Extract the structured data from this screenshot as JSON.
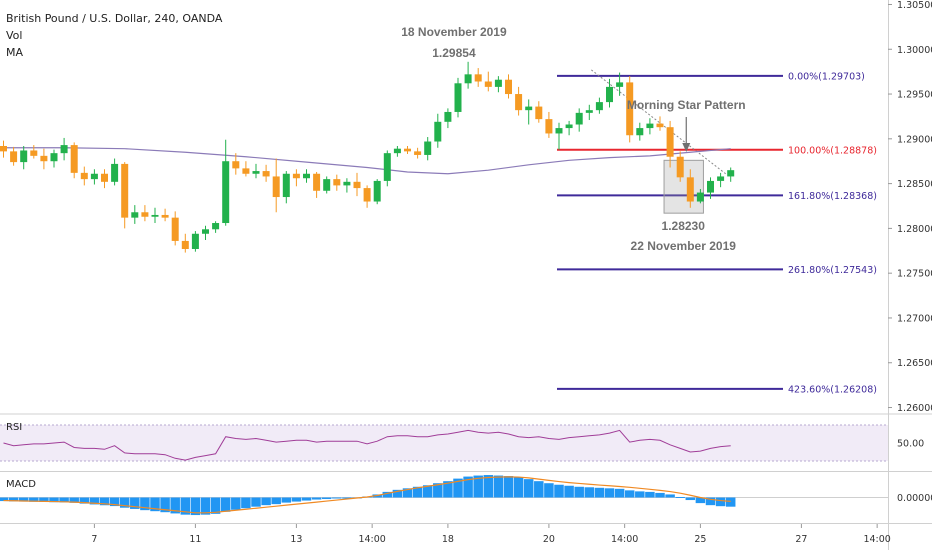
{
  "header": {
    "symbol_line": "British Pound / U.S. Dollar, 240, OANDA",
    "vol_label": "Vol",
    "ma_label": "MA"
  },
  "panes": {
    "rsi_label": "RSI",
    "macd_label": "MACD",
    "rsi_level": "50.00",
    "macd_level": "0.00000"
  },
  "chart_data": {
    "type": "candlestick",
    "price_axis": {
      "ticks": [
        "1.30500",
        "1.30000",
        "1.29500",
        "1.29000",
        "1.28500",
        "1.28000",
        "1.27500",
        "1.27000",
        "1.26500",
        "1.26000"
      ],
      "ylim": [
        1.2595,
        1.3055
      ]
    },
    "x_axis": {
      "ticks": [
        {
          "label": "7",
          "i": 9
        },
        {
          "label": "11",
          "i": 19
        },
        {
          "label": "13",
          "i": 29
        },
        {
          "label": "14:00",
          "i": 36.5
        },
        {
          "label": "18",
          "i": 44
        },
        {
          "label": "20",
          "i": 54
        },
        {
          "label": "14:00",
          "i": 61.5
        },
        {
          "label": "25",
          "i": 69
        },
        {
          "label": "27",
          "i": 79
        },
        {
          "label": "14:00",
          "i": 86.5
        }
      ]
    },
    "candles_ohlc": [
      [
        1.2892,
        1.2898,
        1.2879,
        1.2886
      ],
      [
        1.2886,
        1.2891,
        1.287,
        1.2874
      ],
      [
        1.2874,
        1.2892,
        1.2866,
        1.2887
      ],
      [
        1.2887,
        1.2893,
        1.2878,
        1.2881
      ],
      [
        1.2881,
        1.2889,
        1.2866,
        1.2875
      ],
      [
        1.2875,
        1.2888,
        1.2868,
        1.2884
      ],
      [
        1.2884,
        1.2901,
        1.2876,
        1.2893
      ],
      [
        1.2893,
        1.2896,
        1.2856,
        1.2862
      ],
      [
        1.2862,
        1.2869,
        1.2848,
        1.2855
      ],
      [
        1.2855,
        1.2866,
        1.2849,
        1.2861
      ],
      [
        1.2861,
        1.2866,
        1.2845,
        1.2852
      ],
      [
        1.2852,
        1.2878,
        1.2848,
        1.2872
      ],
      [
        1.2872,
        1.2874,
        1.28,
        1.2812
      ],
      [
        1.2812,
        1.2826,
        1.2805,
        1.2818
      ],
      [
        1.2818,
        1.2826,
        1.2808,
        1.2813
      ],
      [
        1.2813,
        1.2823,
        1.2806,
        1.2815
      ],
      [
        1.2815,
        1.2822,
        1.2808,
        1.2812
      ],
      [
        1.2812,
        1.2819,
        1.2781,
        1.2786
      ],
      [
        1.2786,
        1.2794,
        1.2773,
        1.2777
      ],
      [
        1.2777,
        1.2797,
        1.2774,
        1.2794
      ],
      [
        1.2794,
        1.2803,
        1.2787,
        1.2799
      ],
      [
        1.2799,
        1.2808,
        1.2795,
        1.2806
      ],
      [
        1.2806,
        1.2899,
        1.2803,
        1.2875
      ],
      [
        1.2875,
        1.2884,
        1.286,
        1.2867
      ],
      [
        1.2867,
        1.2875,
        1.2858,
        1.2861
      ],
      [
        1.2861,
        1.2872,
        1.2856,
        1.2864
      ],
      [
        1.2864,
        1.2871,
        1.2852,
        1.2858
      ],
      [
        1.2858,
        1.2878,
        1.2818,
        1.2835
      ],
      [
        1.2835,
        1.2864,
        1.2828,
        1.2861
      ],
      [
        1.2861,
        1.2866,
        1.2847,
        1.2856
      ],
      [
        1.2856,
        1.2866,
        1.2851,
        1.2861
      ],
      [
        1.2861,
        1.2863,
        1.2834,
        1.2842
      ],
      [
        1.2842,
        1.2858,
        1.2839,
        1.2855
      ],
      [
        1.2855,
        1.286,
        1.2842,
        1.2848
      ],
      [
        1.2848,
        1.2856,
        1.284,
        1.2852
      ],
      [
        1.2852,
        1.2862,
        1.2836,
        1.2845
      ],
      [
        1.2845,
        1.2848,
        1.2823,
        1.283
      ],
      [
        1.283,
        1.2855,
        1.2827,
        1.2853
      ],
      [
        1.2853,
        1.2887,
        1.2847,
        1.2884
      ],
      [
        1.2884,
        1.2892,
        1.288,
        1.2889
      ],
      [
        1.2889,
        1.2892,
        1.2883,
        1.2886
      ],
      [
        1.2886,
        1.289,
        1.2878,
        1.2882
      ],
      [
        1.2882,
        1.2902,
        1.2876,
        1.2897
      ],
      [
        1.2897,
        1.2928,
        1.289,
        1.2919
      ],
      [
        1.2919,
        1.2934,
        1.2912,
        1.293
      ],
      [
        1.293,
        1.2968,
        1.2924,
        1.2962
      ],
      [
        1.2962,
        1.2986,
        1.2956,
        1.2972
      ],
      [
        1.2972,
        1.2979,
        1.2958,
        1.2964
      ],
      [
        1.2964,
        1.2975,
        1.2953,
        1.2958
      ],
      [
        1.2958,
        1.297,
        1.2952,
        1.2966
      ],
      [
        1.2966,
        1.2972,
        1.2945,
        1.295
      ],
      [
        1.295,
        1.2958,
        1.2926,
        1.2932
      ],
      [
        1.2932,
        1.2944,
        1.2916,
        1.2936
      ],
      [
        1.2936,
        1.2942,
        1.2918,
        1.2922
      ],
      [
        1.2922,
        1.293,
        1.2901,
        1.2906
      ],
      [
        1.2906,
        1.2918,
        1.2888,
        1.2912
      ],
      [
        1.2912,
        1.292,
        1.2904,
        1.2916
      ],
      [
        1.2916,
        1.2934,
        1.2908,
        1.2929
      ],
      [
        1.2929,
        1.2938,
        1.2921,
        1.2932
      ],
      [
        1.2932,
        1.2946,
        1.2928,
        1.2941
      ],
      [
        1.2941,
        1.2967,
        1.2935,
        1.2958
      ],
      [
        1.2958,
        1.2974,
        1.2948,
        1.2963
      ],
      [
        1.2963,
        1.297,
        1.2896,
        1.2904
      ],
      [
        1.2904,
        1.2918,
        1.2898,
        1.2912
      ],
      [
        1.2912,
        1.2923,
        1.2905,
        1.2917
      ],
      [
        1.2917,
        1.2925,
        1.2909,
        1.2913
      ],
      [
        1.2913,
        1.292,
        1.2868,
        1.288
      ],
      [
        1.288,
        1.2886,
        1.2852,
        1.2857
      ],
      [
        1.2857,
        1.2866,
        1.2823,
        1.283
      ],
      [
        1.283,
        1.2844,
        1.2828,
        1.284
      ],
      [
        1.284,
        1.2857,
        1.2833,
        1.2853
      ],
      [
        1.2853,
        1.2862,
        1.2846,
        1.2858
      ],
      [
        1.2858,
        1.2868,
        1.2852,
        1.2865
      ]
    ],
    "moving_average": [
      [
        0,
        1.289
      ],
      [
        6,
        1.289
      ],
      [
        12,
        1.2889
      ],
      [
        18,
        1.2885
      ],
      [
        24,
        1.288
      ],
      [
        30,
        1.2874
      ],
      [
        36,
        1.2868
      ],
      [
        40,
        1.2863
      ],
      [
        44,
        1.2861
      ],
      [
        48,
        1.2865
      ],
      [
        52,
        1.2871
      ],
      [
        56,
        1.2876
      ],
      [
        60,
        1.2879
      ],
      [
        64,
        1.2881
      ],
      [
        68,
        1.2885
      ],
      [
        72,
        1.2889
      ]
    ],
    "fibonacci_levels": [
      {
        "label": "0.00%(1.29703)",
        "price": 1.29703,
        "color": "#3f2a9a"
      },
      {
        "label": "100.00%(1.28878)",
        "price": 1.28878,
        "color": "#e8262f"
      },
      {
        "label": "161.80%(1.28368)",
        "price": 1.28368,
        "color": "#3f2a9a"
      },
      {
        "label": "261.80%(1.27543)",
        "price": 1.27543,
        "color": "#3f2a9a"
      },
      {
        "label": "423.60%(1.26208)",
        "price": 1.26208,
        "color": "#3f2a9a"
      }
    ],
    "annotations": {
      "top_date": "18 November 2019",
      "top_price": "1.29854",
      "pattern_label": "Morning Star Pattern",
      "low_price": "1.28230",
      "low_date": "22 November 2019"
    },
    "rsi": [
      50,
      47,
      48,
      49,
      49,
      50,
      51,
      45,
      44,
      44,
      43,
      47,
      39,
      38,
      38,
      38,
      37,
      33,
      31,
      34,
      36,
      38,
      57,
      55,
      54,
      55,
      53,
      51,
      52,
      53,
      53,
      51,
      52,
      52,
      52,
      52,
      49,
      52,
      57,
      58,
      58,
      57,
      57,
      59,
      60,
      62,
      64,
      62,
      61,
      62,
      60,
      57,
      56,
      57,
      55,
      54,
      56,
      57,
      58,
      59,
      61,
      64,
      51,
      53,
      54,
      53,
      48,
      44,
      40,
      41,
      44,
      46,
      47
    ],
    "rsi_range": [
      20,
      80
    ],
    "macd_hist": [
      -0.00035,
      -0.00038,
      -0.0004,
      -0.00042,
      -0.00044,
      -0.00046,
      -0.00048,
      -0.00052,
      -0.0006,
      -0.00068,
      -0.00076,
      -0.00084,
      -0.001,
      -0.00112,
      -0.00124,
      -0.00134,
      -0.00144,
      -0.00156,
      -0.00168,
      -0.00172,
      -0.00168,
      -0.0016,
      -0.0014,
      -0.0012,
      -0.00105,
      -0.0009,
      -0.00075,
      -0.00065,
      -0.0005,
      -0.0004,
      -0.0003,
      -0.0002,
      -0.00015,
      -0.0001,
      -5e-05,
      0.0,
      0.0001,
      0.0003,
      0.00055,
      0.00075,
      0.0009,
      0.00105,
      0.0012,
      0.0014,
      0.0016,
      0.00185,
      0.00205,
      0.00215,
      0.0022,
      0.00215,
      0.0021,
      0.002,
      0.0018,
      0.0016,
      0.0014,
      0.00125,
      0.00115,
      0.00105,
      0.001,
      0.00095,
      0.0009,
      0.00085,
      0.0007,
      0.0006,
      0.00055,
      0.00045,
      0.0003,
      5e-05,
      -0.00025,
      -0.00055,
      -0.00075,
      -0.00085,
      -0.0009
    ],
    "macd_signal": [
      -0.0003,
      -0.00032,
      -0.00034,
      -0.00036,
      -0.00038,
      -0.0004,
      -0.00042,
      -0.00045,
      -0.0005,
      -0.00056,
      -0.00062,
      -0.0007,
      -0.0008,
      -0.0009,
      -0.001,
      -0.0011,
      -0.0012,
      -0.0013,
      -0.0014,
      -0.0015,
      -0.0015,
      -0.00145,
      -0.00135,
      -0.00125,
      -0.00115,
      -0.00105,
      -0.00095,
      -0.00085,
      -0.00075,
      -0.00065,
      -0.00055,
      -0.00045,
      -0.00035,
      -0.00025,
      -0.00015,
      -5e-05,
      5e-05,
      0.0002,
      0.0004,
      0.0006,
      0.00078,
      0.00095,
      0.0011,
      0.00125,
      0.0014,
      0.00158,
      0.00175,
      0.00188,
      0.00196,
      0.002,
      0.00202,
      0.002,
      0.00192,
      0.0018,
      0.00168,
      0.00156,
      0.00146,
      0.00138,
      0.0013,
      0.00122,
      0.00115,
      0.00108,
      0.001,
      0.0009,
      0.0008,
      0.0007,
      0.00058,
      0.00042,
      0.00022,
      0.0,
      -0.00018,
      -0.0003,
      -0.00038
    ],
    "colors": {
      "up": "#22b14c",
      "down": "#f59a23",
      "ma": "#8b7bb8",
      "rsi": "#a03d98",
      "macd_hist": "#2196f3",
      "macd_signal": "#f08a24",
      "axis_text": "#333333"
    }
  }
}
